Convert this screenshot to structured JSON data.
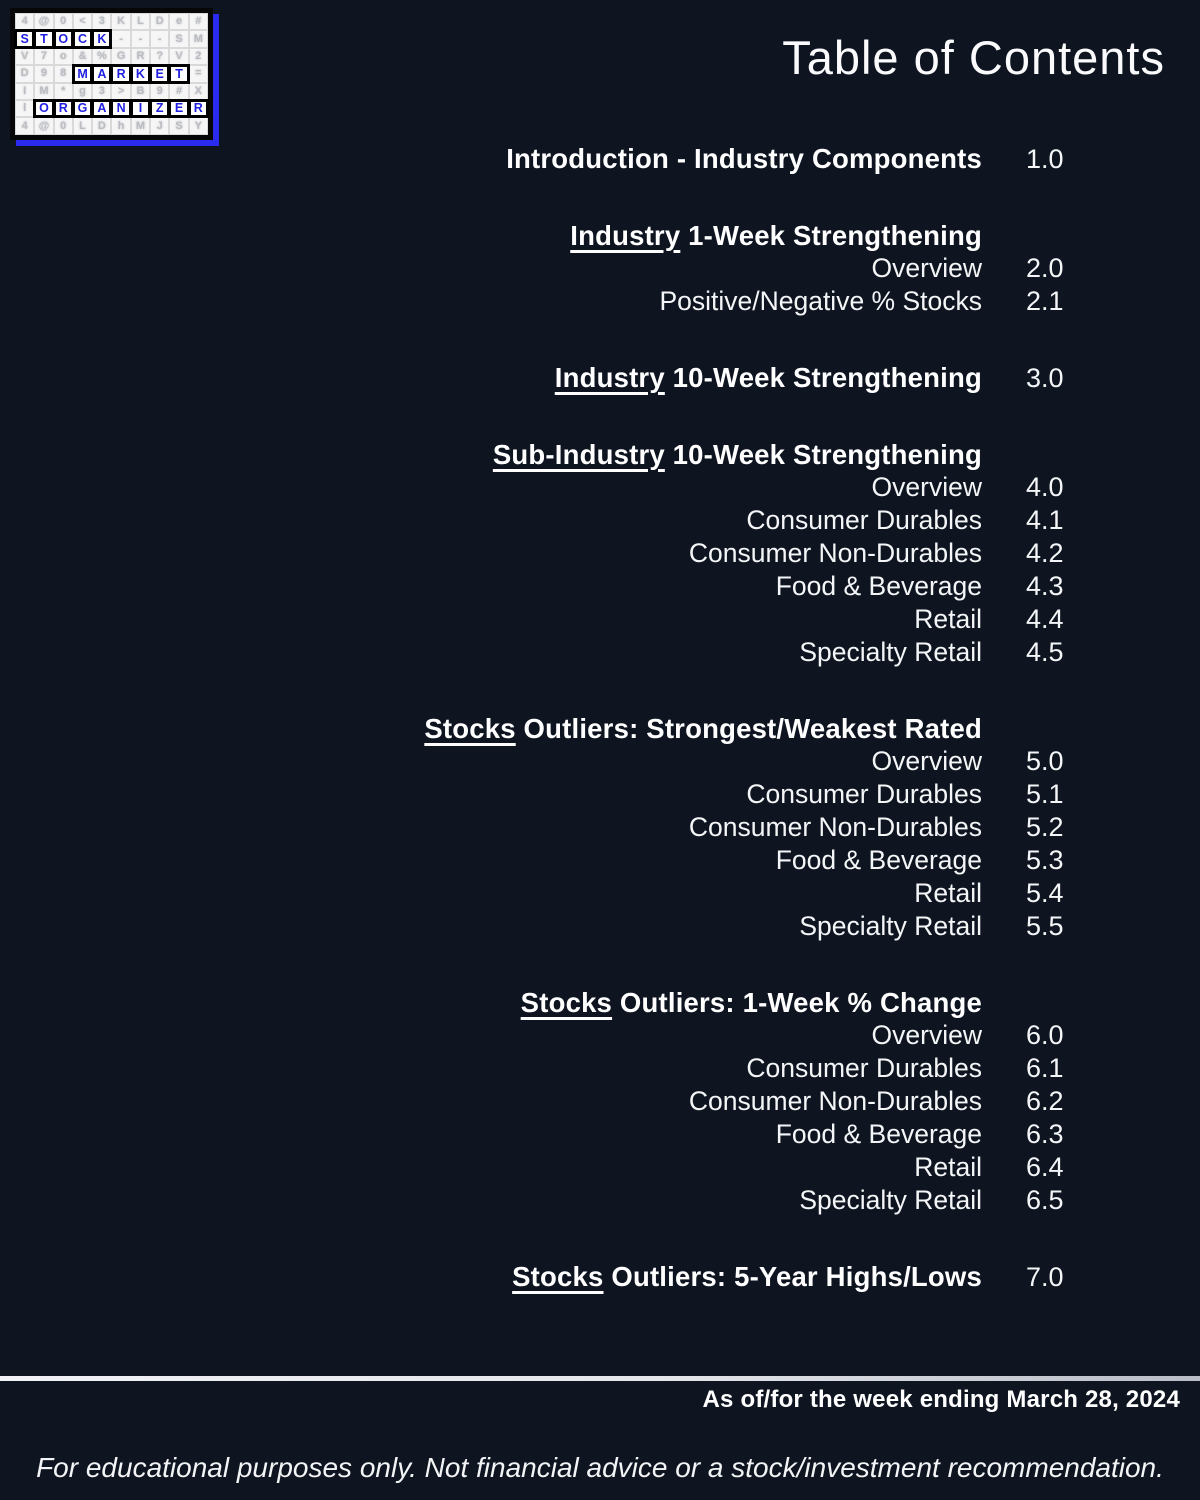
{
  "title": "Table of Contents",
  "colors": {
    "background": "#0e1521",
    "logo_blue": "#2b2bf0",
    "logo_letter_blue": "#1e1ee0",
    "text": "#ffffff"
  },
  "logo": {
    "name": "Stock Market Organizer crossword logo",
    "words": [
      "STOCK",
      "MARKET",
      "ORGANIZER"
    ],
    "rows": [
      [
        {
          "t": "4"
        },
        {
          "t": "@"
        },
        {
          "t": "0"
        },
        {
          "t": "<"
        },
        {
          "t": "3"
        },
        {
          "t": "K"
        },
        {
          "t": "L"
        },
        {
          "t": "D"
        },
        {
          "t": "e"
        },
        {
          "t": "#"
        }
      ],
      [
        {
          "t": "S",
          "h": true
        },
        {
          "t": "T",
          "h": true
        },
        {
          "t": "O",
          "h": true
        },
        {
          "t": "C",
          "h": true
        },
        {
          "t": "K",
          "h": true
        },
        {
          "t": "-"
        },
        {
          "t": "-"
        },
        {
          "t": "-"
        },
        {
          "t": "S"
        },
        {
          "t": "M"
        }
      ],
      [
        {
          "t": "V"
        },
        {
          "t": "7"
        },
        {
          "t": "o"
        },
        {
          "t": "&"
        },
        {
          "t": "%"
        },
        {
          "t": "G"
        },
        {
          "t": "R"
        },
        {
          "t": "?"
        },
        {
          "t": "V"
        },
        {
          "t": "2"
        }
      ],
      [
        {
          "t": "D"
        },
        {
          "t": "9"
        },
        {
          "t": "8"
        },
        {
          "t": "M",
          "h": true
        },
        {
          "t": "A",
          "h": true
        },
        {
          "t": "R",
          "h": true
        },
        {
          "t": "K",
          "h": true
        },
        {
          "t": "E",
          "h": true
        },
        {
          "t": "T",
          "h": true
        },
        {
          "t": "="
        }
      ],
      [
        {
          "t": "I"
        },
        {
          "t": "M"
        },
        {
          "t": "*"
        },
        {
          "t": "g"
        },
        {
          "t": "3"
        },
        {
          "t": ">"
        },
        {
          "t": "B"
        },
        {
          "t": "9"
        },
        {
          "t": "#"
        },
        {
          "t": "X"
        }
      ],
      [
        {
          "t": "l"
        },
        {
          "t": "O",
          "h": true
        },
        {
          "t": "R",
          "h": true
        },
        {
          "t": "G",
          "h": true
        },
        {
          "t": "A",
          "h": true
        },
        {
          "t": "N",
          "h": true
        },
        {
          "t": "I",
          "h": true
        },
        {
          "t": "Z",
          "h": true
        },
        {
          "t": "E",
          "h": true
        },
        {
          "t": "R",
          "h": true
        }
      ],
      [
        {
          "t": "4"
        },
        {
          "t": "@"
        },
        {
          "t": "0"
        },
        {
          "t": "L"
        },
        {
          "t": "D"
        },
        {
          "t": "h"
        },
        {
          "t": "M"
        },
        {
          "t": "J"
        },
        {
          "t": "S"
        },
        {
          "t": "Y"
        }
      ]
    ]
  },
  "toc": {
    "sections": [
      {
        "underlined": "",
        "rest": "Introduction - Industry Components",
        "page": "1.0",
        "items": []
      },
      {
        "underlined": "Industry",
        "rest": " 1-Week Strengthening",
        "page": "",
        "items": [
          {
            "label": "Overview",
            "page": "2.0"
          },
          {
            "label": "Positive/Negative % Stocks",
            "page": "2.1"
          }
        ]
      },
      {
        "underlined": "Industry",
        "rest": " 10-Week Strengthening",
        "page": "3.0",
        "items": []
      },
      {
        "underlined": "Sub-Industry",
        "rest": " 10-Week Strengthening",
        "page": "",
        "items": [
          {
            "label": "Overview",
            "page": "4.0"
          },
          {
            "label": "Consumer Durables",
            "page": "4.1"
          },
          {
            "label": "Consumer Non-Durables",
            "page": "4.2"
          },
          {
            "label": "Food & Beverage",
            "page": "4.3"
          },
          {
            "label": "Retail",
            "page": "4.4"
          },
          {
            "label": "Specialty Retail",
            "page": "4.5"
          }
        ]
      },
      {
        "underlined": "Stocks",
        "rest": " Outliers: Strongest/Weakest Rated",
        "page": "",
        "items": [
          {
            "label": "Overview",
            "page": "5.0"
          },
          {
            "label": "Consumer Durables",
            "page": "5.1"
          },
          {
            "label": "Consumer Non-Durables",
            "page": "5.2"
          },
          {
            "label": "Food & Beverage",
            "page": "5.3"
          },
          {
            "label": "Retail",
            "page": "5.4"
          },
          {
            "label": "Specialty Retail",
            "page": "5.5"
          }
        ]
      },
      {
        "underlined": "Stocks",
        "rest": " Outliers: 1-Week % Change",
        "page": "",
        "items": [
          {
            "label": "Overview",
            "page": "6.0"
          },
          {
            "label": "Consumer Durables",
            "page": "6.1"
          },
          {
            "label": "Consumer Non-Durables",
            "page": "6.2"
          },
          {
            "label": "Food & Beverage",
            "page": "6.3"
          },
          {
            "label": "Retail",
            "page": "6.4"
          },
          {
            "label": "Specialty Retail",
            "page": "6.5"
          }
        ]
      },
      {
        "underlined": "Stocks",
        "rest": " Outliers: 5-Year Highs/Lows",
        "page": "7.0",
        "items": []
      }
    ]
  },
  "footer": {
    "as_of": "As of/for the week ending March 28, 2024",
    "disclaimer": "For educational purposes only. Not financial advice or a stock/investment recommendation."
  }
}
